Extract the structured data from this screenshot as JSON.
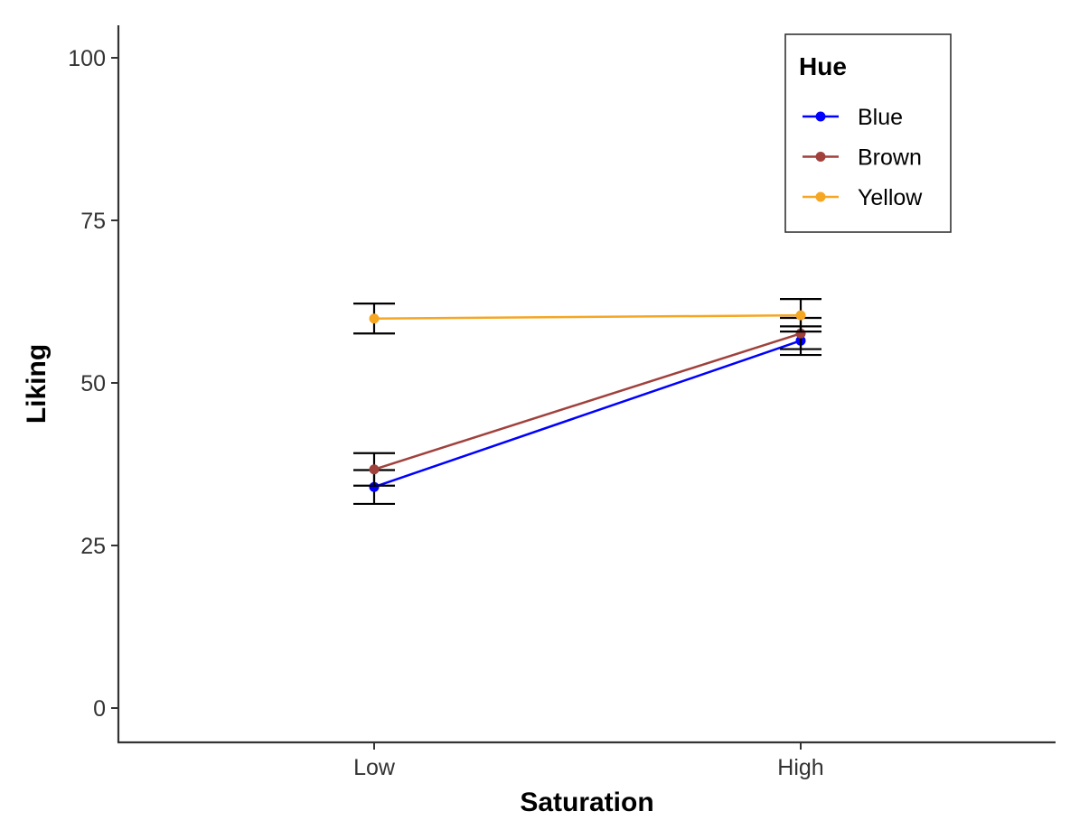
{
  "chart_data": {
    "type": "line",
    "title": "",
    "xlabel": "Saturation",
    "ylabel": "Liking",
    "categories": [
      "Low",
      "High"
    ],
    "ylim": [
      -5,
      105
    ],
    "yticks": [
      0,
      25,
      50,
      75,
      100
    ],
    "grid": false,
    "legend": {
      "title": "Hue",
      "position": "top-right"
    },
    "error_bar_color": "#000000",
    "series": [
      {
        "name": "Blue",
        "color": "#0000ff",
        "values": [
          34.0,
          56.5
        ],
        "error_low": [
          31.4,
          54.3
        ],
        "error_high": [
          36.6,
          58.7
        ]
      },
      {
        "name": "Brown",
        "color": "#a0413c",
        "values": [
          36.7,
          57.6
        ],
        "error_low": [
          34.2,
          55.2
        ],
        "error_high": [
          39.2,
          60.0
        ]
      },
      {
        "name": "Yellow",
        "color": "#f5a623",
        "values": [
          59.9,
          60.4
        ],
        "error_low": [
          57.6,
          57.9
        ],
        "error_high": [
          62.2,
          62.9
        ]
      }
    ]
  }
}
